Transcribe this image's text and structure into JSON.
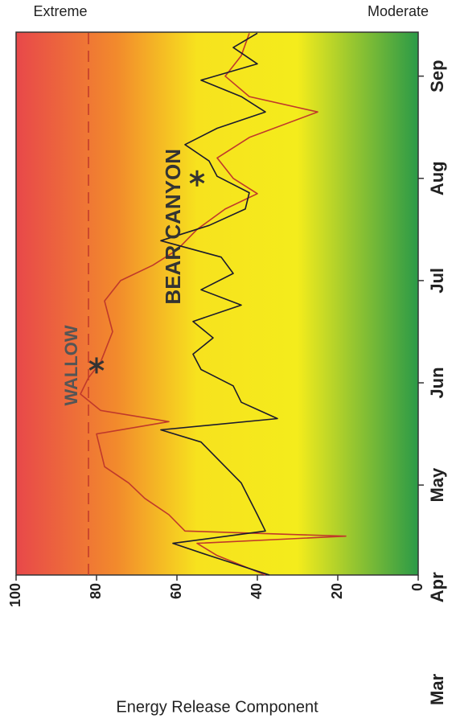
{
  "chart_data": {
    "type": "line",
    "y_label": "Energy Release Component",
    "scale_labels": {
      "high": "Extreme",
      "low": "Moderate"
    },
    "xlim": [
      1.12,
      6.43
    ],
    "xticks": [
      {
        "value": 0,
        "label": "Mar"
      },
      {
        "value": 1,
        "label": "Apr"
      },
      {
        "value": 2,
        "label": "May"
      },
      {
        "value": 3,
        "label": "Jun"
      },
      {
        "value": 4,
        "label": "Jul"
      },
      {
        "value": 5,
        "label": "Aug"
      },
      {
        "value": 6,
        "label": "Sep"
      }
    ],
    "ylim": [
      0,
      100
    ],
    "yticks": [
      0,
      20,
      40,
      60,
      80,
      100
    ],
    "reference_line": 82,
    "series": [
      {
        "color": "#c0392b",
        "x": [
          1.12,
          1.31,
          1.43,
          1.5,
          1.55,
          1.71,
          1.87,
          2.02,
          2.18,
          2.34,
          2.5,
          2.62,
          2.73,
          2.89,
          3.05,
          3.2,
          3.5,
          3.8,
          4.0,
          4.15,
          4.3,
          4.5,
          4.7,
          4.85,
          5.0,
          5.2,
          5.4,
          5.65,
          5.8,
          6.0,
          6.2,
          6.42
        ],
        "values": [
          38,
          50,
          55,
          18,
          58,
          62,
          68,
          72,
          78,
          79,
          80,
          62,
          79,
          84,
          82,
          79,
          76,
          78,
          74,
          66,
          60,
          55,
          48,
          40,
          46,
          50,
          42,
          25,
          42,
          48,
          44,
          42
        ]
      },
      {
        "color": "#1a1a2e",
        "x": [
          1.12,
          1.31,
          1.43,
          1.55,
          1.71,
          2.02,
          2.26,
          2.42,
          2.54,
          2.65,
          2.81,
          2.97,
          3.13,
          3.28,
          3.44,
          3.6,
          3.76,
          3.91,
          4.07,
          4.23,
          4.39,
          4.54,
          4.7,
          4.86,
          5.02,
          5.17,
          5.33,
          5.49,
          5.65,
          5.8,
          5.96,
          6.12,
          6.28,
          6.42
        ],
        "values": [
          37,
          52,
          61,
          38,
          40,
          44,
          50,
          54,
          64,
          35,
          44,
          46,
          54,
          56,
          51,
          56,
          44,
          54,
          46,
          49,
          64,
          52,
          43,
          42,
          50,
          52,
          58,
          50,
          38,
          44,
          54,
          40,
          46,
          40
        ]
      }
    ],
    "annotations": [
      {
        "text": "WALLOW",
        "x": 3.17,
        "y": 80
      },
      {
        "text": "BEAR CANYON",
        "x": 5.0,
        "y": 55
      }
    ]
  }
}
